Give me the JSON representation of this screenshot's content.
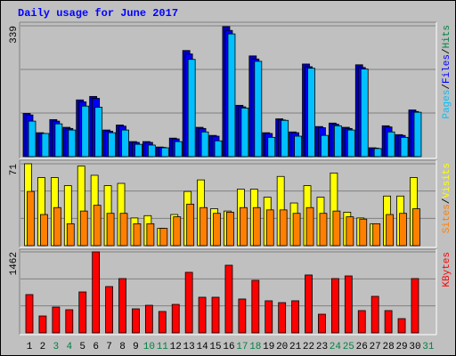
{
  "chart_data": {
    "type": "bar",
    "title": "Daily usage for June 2017",
    "categories": [
      "1",
      "2",
      "3",
      "4",
      "5",
      "6",
      "7",
      "8",
      "9",
      "10",
      "11",
      "12",
      "13",
      "14",
      "15",
      "16",
      "17",
      "18",
      "19",
      "20",
      "21",
      "22",
      "23",
      "24",
      "25",
      "26",
      "27",
      "28",
      "29",
      "30",
      "31"
    ],
    "x_label_colors": [
      "#000000",
      "#000000",
      "#008040",
      "#008040",
      "#000000",
      "#000000",
      "#000000",
      "#000000",
      "#000000",
      "#008040",
      "#008040",
      "#000000",
      "#000000",
      "#000000",
      "#000000",
      "#000000",
      "#008040",
      "#008040",
      "#000000",
      "#000000",
      "#000000",
      "#000000",
      "#000000",
      "#008040",
      "#008040",
      "#000000",
      "#000000",
      "#000000",
      "#000000",
      "#000000",
      "#008040"
    ],
    "grid_lines": 3,
    "legend_separator": "/",
    "panels": [
      {
        "ylim": [
          0,
          339
        ],
        "yticks": [
          339
        ],
        "series": [
          {
            "name": "Hits",
            "color": "#0000c0",
            "legend_color": "#008040",
            "values": [
              112,
              62,
              96,
              76,
              147,
              156,
              69,
              82,
              39,
              39,
              25,
              48,
              275,
              76,
              55,
              337,
              133,
              261,
              62,
              98,
              64,
              240,
              78,
              87,
              76,
              238,
              23,
              80,
              57,
              121,
              null
            ]
          },
          {
            "name": "Files",
            "color": "#0000ff",
            "legend_color": "#0000ff",
            "values": [
              108,
              60,
              92,
              73,
              142,
              151,
              66,
              79,
              37,
              37,
              24,
              46,
              266,
              73,
              53,
              327,
              129,
              253,
              60,
              95,
              62,
              233,
              75,
              84,
              73,
              231,
              22,
              77,
              55,
              117,
              null
            ]
          },
          {
            "name": "Pages",
            "color": "#00c0ff",
            "legend_color": "#00c0ff",
            "values": [
              92,
              60,
              85,
              69,
              131,
              128,
              62,
              69,
              32,
              30,
              23,
              39,
              252,
              64,
              41,
              318,
              126,
              247,
              50,
              94,
              53,
              229,
              55,
              80,
              69,
              227,
              21,
              64,
              50,
              115,
              null
            ]
          }
        ]
      },
      {
        "ylim": [
          0,
          71
        ],
        "yticks": [
          71
        ],
        "series": [
          {
            "name": "Visits",
            "color": "#ffff00",
            "legend_color": "#ffff00",
            "values": [
              71,
              59,
              59,
              52,
              69,
              61,
              52,
              54,
              24,
              26,
              15,
              27,
              47,
              57,
              32,
              30,
              49,
              49,
              42,
              60,
              37,
              52,
              42,
              63,
              29,
              24,
              19,
              43,
              43,
              59,
              null
            ]
          },
          {
            "name": "Sites",
            "color": "#ff8000",
            "legend_color": "#ff8000",
            "values": [
              47,
              27,
              33,
              19,
              30,
              35,
              28,
              28,
              19,
              19,
              15,
              25,
              36,
              33,
              28,
              29,
              33,
              33,
              31,
              31,
              28,
              33,
              28,
              30,
              25,
              23,
              19,
              27,
              28,
              32,
              null
            ]
          }
        ]
      },
      {
        "ylim": [
          0,
          1462
        ],
        "yticks": [
          1462
        ],
        "series": [
          {
            "name": "KBytes",
            "color": "#ff0000",
            "legend_color": "#ff0000",
            "values": [
              691,
              305,
              466,
              418,
              739,
              1462,
              836,
              980,
              434,
              498,
              386,
              514,
              1093,
              643,
              643,
              1221,
              611,
              948,
              579,
              546,
              579,
              1045,
              337,
              980,
              1028,
              402,
              659,
              402,
              257,
              980,
              null
            ]
          }
        ]
      }
    ]
  }
}
